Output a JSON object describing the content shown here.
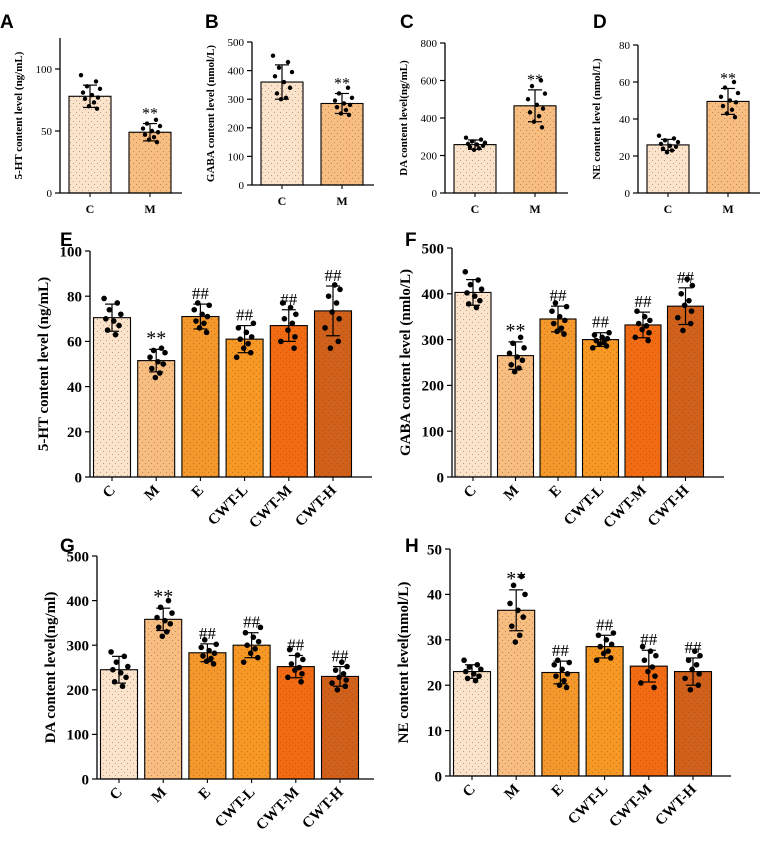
{
  "colors": {
    "C": "#fbe3cb",
    "M": "#f8bd80",
    "E": "#f5982c",
    "CWT-L": "#f89824",
    "CWT-M": "#f26b12",
    "CWT-H": "#d0601a"
  },
  "chart_data": [
    {
      "panel": "A",
      "type": "bar",
      "ylabel": "5-HT content level (ng/mL)",
      "categories": [
        "C",
        "M"
      ],
      "values": [
        78,
        49
      ],
      "errors": [
        9,
        7
      ],
      "ylim": [
        0,
        125
      ],
      "yticks": [
        0,
        50,
        100
      ],
      "annotations": [
        "",
        "**"
      ],
      "points": [
        [
          95,
          90,
          86,
          84,
          81,
          79,
          77,
          76,
          73,
          70,
          68
        ],
        [
          59,
          56,
          54,
          52,
          50,
          49,
          47,
          45,
          43,
          41
        ]
      ]
    },
    {
      "panel": "B",
      "type": "bar",
      "ylabel": "GABA content level (nmol/L)",
      "categories": [
        "C",
        "M"
      ],
      "values": [
        360,
        285
      ],
      "errors": [
        60,
        35
      ],
      "ylim": [
        0,
        500
      ],
      "yticks": [
        0,
        100,
        200,
        300,
        400,
        500
      ],
      "annotations": [
        "",
        "**"
      ],
      "points": [
        [
          452,
          430,
          410,
          395,
          380,
          360,
          340,
          320,
          305,
          300
        ],
        [
          340,
          320,
          305,
          295,
          285,
          280,
          272,
          262,
          250,
          245
        ]
      ]
    },
    {
      "panel": "C",
      "type": "bar",
      "ylabel": "DA content level(ng/mL)",
      "categories": [
        "C",
        "M"
      ],
      "values": [
        258,
        465
      ],
      "errors": [
        25,
        85
      ],
      "ylim": [
        0,
        800
      ],
      "yticks": [
        0,
        200,
        400,
        600,
        800
      ],
      "annotations": [
        "",
        "**"
      ],
      "points": [
        [
          295,
          285,
          275,
          268,
          262,
          258,
          252,
          245,
          238,
          230
        ],
        [
          600,
          570,
          530,
          500,
          470,
          450,
          430,
          410,
          380,
          350
        ]
      ]
    },
    {
      "panel": "D",
      "type": "bar",
      "ylabel": "NE content level (nmol/L)",
      "categories": [
        "C",
        "M"
      ],
      "values": [
        26,
        49.5
      ],
      "errors": [
        3,
        7
      ],
      "ylim": [
        0,
        80
      ],
      "yticks": [
        0,
        20,
        40,
        60,
        80
      ],
      "annotations": [
        "",
        "**"
      ],
      "points": [
        [
          31,
          29.5,
          28.5,
          27.5,
          26.5,
          25.5,
          25,
          24,
          23,
          22
        ],
        [
          60,
          57,
          54,
          52,
          50,
          49,
          47,
          45,
          43,
          41
        ]
      ]
    },
    {
      "panel": "E",
      "type": "bar",
      "ylabel": "5-HT content level (ng/mL)",
      "categories": [
        "C",
        "M",
        "E",
        "CWT-L",
        "CWT-M",
        "CWT-H"
      ],
      "values": [
        70.5,
        51.5,
        71,
        61,
        67,
        73.5
      ],
      "errors": [
        6,
        5,
        5.5,
        6,
        7,
        11
      ],
      "ylim": [
        0,
        100
      ],
      "yticks": [
        0,
        20,
        40,
        60,
        80,
        100
      ],
      "annotations": [
        "",
        "**",
        "##",
        "##",
        "##",
        "##"
      ],
      "points": [
        [
          79,
          77,
          74,
          72,
          70,
          69,
          67,
          65,
          63
        ],
        [
          57,
          56,
          55,
          53,
          51,
          50,
          48,
          46,
          44
        ],
        [
          77,
          76,
          74,
          72,
          71,
          69,
          68,
          66,
          64
        ],
        [
          68,
          66,
          64,
          62,
          61,
          59,
          57,
          55,
          53
        ],
        [
          77,
          75,
          72,
          70,
          68,
          65,
          62,
          60,
          57
        ],
        [
          85,
          83,
          80,
          77,
          73,
          70,
          66,
          60,
          57
        ]
      ]
    },
    {
      "panel": "F",
      "type": "bar",
      "ylabel": "GABA content level (nmlo/L)",
      "categories": [
        "C",
        "M",
        "E",
        "CWT-L",
        "CWT-M",
        "CWT-H"
      ],
      "values": [
        403,
        265,
        345,
        300,
        332,
        373
      ],
      "errors": [
        28,
        30,
        28,
        15,
        28,
        40
      ],
      "ylim": [
        0,
        500
      ],
      "yticks": [
        0,
        100,
        200,
        300,
        400,
        500
      ],
      "annotations": [
        "",
        "**",
        "##",
        "##",
        "##",
        "##"
      ],
      "points": [
        [
          448,
          430,
          420,
          410,
          402,
          395,
          385,
          378,
          370
        ],
        [
          305,
          292,
          282,
          270,
          262,
          255,
          245,
          238,
          230
        ],
        [
          380,
          372,
          362,
          350,
          342,
          335,
          325,
          318,
          312
        ],
        [
          315,
          310,
          305,
          302,
          298,
          294,
          290,
          286,
          282
        ],
        [
          362,
          350,
          342,
          335,
          330,
          322,
          315,
          305,
          298
        ],
        [
          432,
          418,
          400,
          385,
          375,
          362,
          348,
          335,
          320
        ]
      ]
    },
    {
      "panel": "G",
      "type": "bar",
      "ylabel": "DA content level(ng/ml)",
      "categories": [
        "C",
        "M",
        "E",
        "CWT-L",
        "CWT-M",
        "CWT-H"
      ],
      "values": [
        245,
        358,
        283,
        300,
        252,
        230
      ],
      "errors": [
        30,
        25,
        20,
        28,
        25,
        22
      ],
      "ylim": [
        0,
        500
      ],
      "yticks": [
        0,
        100,
        200,
        300,
        400,
        500
      ],
      "annotations": [
        "",
        "**",
        "##",
        "##",
        "##",
        "##"
      ],
      "points": [
        [
          285,
          275,
          262,
          252,
          245,
          238,
          228,
          218,
          208
        ],
        [
          400,
          385,
          372,
          362,
          355,
          348,
          340,
          330,
          320
        ],
        [
          312,
          302,
          295,
          288,
          282,
          276,
          270,
          264,
          258
        ],
        [
          340,
          328,
          318,
          308,
          300,
          292,
          282,
          272,
          262
        ],
        [
          290,
          278,
          268,
          258,
          250,
          244,
          236,
          228,
          218
        ],
        [
          262,
          252,
          244,
          236,
          228,
          222,
          215,
          208,
          200
        ]
      ]
    },
    {
      "panel": "H",
      "type": "bar",
      "ylabel": "NE content level(nmol/L)",
      "categories": [
        "C",
        "M",
        "E",
        "CWT-L",
        "CWT-M",
        "CWT-H"
      ],
      "values": [
        23,
        36.5,
        22.8,
        28.5,
        24.2,
        23
      ],
      "errors": [
        1.5,
        4.5,
        2.5,
        2.5,
        3.5,
        3
      ],
      "ylim": [
        0,
        50
      ],
      "yticks": [
        0,
        10,
        20,
        30,
        40,
        50
      ],
      "annotations": [
        "",
        "**",
        "##",
        "##",
        "##",
        "##"
      ],
      "points": [
        [
          25.5,
          24.5,
          24,
          23.5,
          23,
          22.5,
          22,
          21.5,
          21
        ],
        [
          44,
          42,
          40,
          38,
          36.5,
          35,
          33,
          31,
          29.5
        ],
        [
          25.5,
          25,
          24.5,
          23.5,
          22.5,
          22,
          21,
          20,
          19.5
        ],
        [
          31.5,
          31,
          30,
          29,
          28.5,
          27.5,
          27,
          26,
          25.5
        ],
        [
          28.5,
          27.5,
          26.5,
          25.5,
          24,
          23,
          22,
          20.5,
          19.5
        ],
        [
          27.5,
          26.5,
          25.5,
          24.5,
          23.5,
          22.5,
          21.5,
          20,
          19
        ]
      ]
    }
  ]
}
